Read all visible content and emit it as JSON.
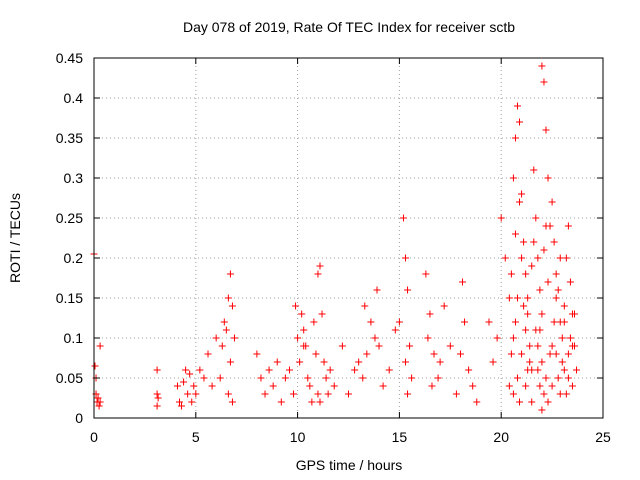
{
  "chart_data": {
    "type": "scatter",
    "title": "Day 078 of 2019, Rate Of TEC Index for receiver sctb",
    "xlabel": "GPS time / hours",
    "ylabel": "ROTI / TECUs",
    "xlim": [
      0,
      25
    ],
    "ylim": [
      0,
      0.45
    ],
    "xticks": [
      0,
      5,
      10,
      15,
      20,
      25
    ],
    "yticks": [
      0,
      0.05,
      0.1,
      0.15,
      0.2,
      0.25,
      0.3,
      0.35,
      0.4,
      0.45
    ],
    "xtick_labels": [
      "0",
      "5",
      "10",
      "15",
      "20",
      "25"
    ],
    "ytick_labels": [
      "0",
      "0.05",
      "0.1",
      "0.15",
      "0.2",
      "0.25",
      "0.3",
      "0.35",
      "0.4",
      "0.45"
    ],
    "grid": true,
    "marker": "+",
    "marker_color": "#ff0000",
    "series": [
      {
        "name": "ROTI",
        "x": [
          0.0,
          0.05,
          0.1,
          0.15,
          0.2,
          0.25,
          0.1,
          0.3,
          0.3,
          3.1,
          3.1,
          3.15,
          3.1,
          4.1,
          4.2,
          4.3,
          4.4,
          4.5,
          4.6,
          4.7,
          4.8,
          4.9,
          5.0,
          5.2,
          5.4,
          5.6,
          5.8,
          6.0,
          6.2,
          6.4,
          6.6,
          6.7,
          6.8,
          6.9,
          6.7,
          6.6,
          6.8,
          6.5,
          6.3,
          8.0,
          8.2,
          8.4,
          8.6,
          8.8,
          9.0,
          9.2,
          9.4,
          9.6,
          9.8,
          9.9,
          10.0,
          10.1,
          10.2,
          10.3,
          10.4,
          10.5,
          10.6,
          10.7,
          10.8,
          10.9,
          11.0,
          11.1,
          11.2,
          11.3,
          11.4,
          11.5,
          11.6,
          11.8,
          11.0,
          11.1,
          10.3,
          12.2,
          12.5,
          12.8,
          13.0,
          13.2,
          13.4,
          13.6,
          13.8,
          14.0,
          14.2,
          14.5,
          14.8,
          13.3,
          13.9,
          15.0,
          15.2,
          15.3,
          15.4,
          15.5,
          15.6,
          15.4,
          15.3,
          16.3,
          16.5,
          16.7,
          16.9,
          16.6,
          16.4,
          17.0,
          17.2,
          17.5,
          17.8,
          18.0,
          18.1,
          18.2,
          18.4,
          18.6,
          18.8,
          19.4,
          19.6,
          19.8,
          20.0,
          20.2,
          20.4,
          20.5,
          20.6,
          20.7,
          20.8,
          20.9,
          21.0,
          21.1,
          21.2,
          21.3,
          21.4,
          21.5,
          21.6,
          21.7,
          21.8,
          21.9,
          22.0,
          22.1,
          22.2,
          22.3,
          22.4,
          22.5,
          22.6,
          22.7,
          22.8,
          22.9,
          23.0,
          23.1,
          23.2,
          23.3,
          23.4,
          23.5,
          23.6,
          23.7,
          20.8,
          20.9,
          20.7,
          21.0,
          20.6,
          21.2,
          21.5,
          21.8,
          22.0,
          22.1,
          22.2,
          22.0,
          22.3,
          22.5,
          22.7,
          22.9,
          23.1,
          23.3,
          23.5,
          21.3,
          21.9,
          20.4,
          20.6,
          20.8,
          21.0,
          21.2,
          21.4,
          21.6,
          21.8,
          22.0,
          22.2,
          22.4,
          22.6,
          22.8,
          23.0,
          23.2,
          23.4,
          23.6,
          20.5,
          20.7,
          20.9,
          21.1,
          21.3,
          21.5,
          21.7,
          21.9,
          22.1,
          22.3,
          22.5,
          22.7,
          22.9,
          23.1,
          23.3,
          23.5
        ],
        "y": [
          0.205,
          0.065,
          0.03,
          0.02,
          0.025,
          0.015,
          0.05,
          0.09,
          0.02,
          0.06,
          0.03,
          0.025,
          0.015,
          0.04,
          0.02,
          0.015,
          0.045,
          0.06,
          0.03,
          0.055,
          0.02,
          0.04,
          0.03,
          0.06,
          0.05,
          0.08,
          0.04,
          0.1,
          0.05,
          0.12,
          0.15,
          0.18,
          0.14,
          0.1,
          0.07,
          0.03,
          0.02,
          0.11,
          0.09,
          0.08,
          0.05,
          0.03,
          0.06,
          0.04,
          0.07,
          0.02,
          0.05,
          0.06,
          0.03,
          0.14,
          0.1,
          0.07,
          0.13,
          0.11,
          0.09,
          0.05,
          0.04,
          0.02,
          0.12,
          0.08,
          0.18,
          0.19,
          0.13,
          0.07,
          0.05,
          0.03,
          0.06,
          0.04,
          0.03,
          0.02,
          0.09,
          0.09,
          0.03,
          0.06,
          0.07,
          0.05,
          0.08,
          0.12,
          0.1,
          0.09,
          0.04,
          0.06,
          0.11,
          0.14,
          0.16,
          0.12,
          0.25,
          0.2,
          0.16,
          0.09,
          0.05,
          0.03,
          0.07,
          0.18,
          0.13,
          0.08,
          0.05,
          0.04,
          0.1,
          0.07,
          0.14,
          0.09,
          0.03,
          0.08,
          0.17,
          0.12,
          0.06,
          0.04,
          0.02,
          0.12,
          0.07,
          0.1,
          0.25,
          0.2,
          0.15,
          0.08,
          0.3,
          0.35,
          0.39,
          0.37,
          0.28,
          0.22,
          0.18,
          0.13,
          0.09,
          0.06,
          0.31,
          0.25,
          0.2,
          0.16,
          0.44,
          0.42,
          0.36,
          0.3,
          0.24,
          0.27,
          0.22,
          0.18,
          0.16,
          0.12,
          0.1,
          0.14,
          0.2,
          0.24,
          0.17,
          0.13,
          0.09,
          0.06,
          0.05,
          0.02,
          0.12,
          0.08,
          0.03,
          0.04,
          0.02,
          0.06,
          0.01,
          0.03,
          0.05,
          0.07,
          0.02,
          0.04,
          0.08,
          0.03,
          0.06,
          0.05,
          0.09,
          0.15,
          0.11,
          0.04,
          0.1,
          0.15,
          0.2,
          0.11,
          0.07,
          0.22,
          0.09,
          0.13,
          0.24,
          0.08,
          0.12,
          0.05,
          0.07,
          0.03,
          0.1,
          0.13,
          0.18,
          0.23,
          0.27,
          0.14,
          0.06,
          0.19,
          0.11,
          0.04,
          0.21,
          0.17,
          0.09,
          0.15,
          0.2,
          0.12,
          0.08,
          0.04
        ]
      }
    ]
  }
}
